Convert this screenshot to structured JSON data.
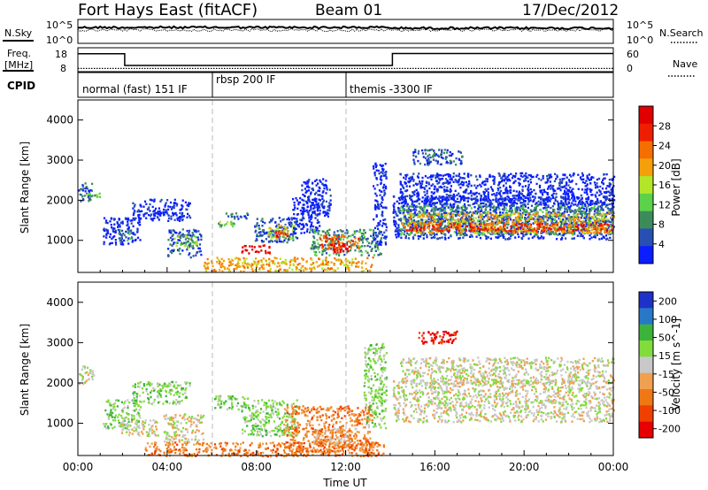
{
  "header": {
    "station": "Fort Hays East (fitACF)",
    "beam": "Beam 01",
    "date": "17/Dec/2012"
  },
  "noise_panel": {
    "left_label": "N.Sky",
    "right_label": "N.Search",
    "ticks": [
      "10^5",
      "10^0"
    ]
  },
  "freq_panel": {
    "left_label_line1": "Freq.",
    "left_label_line2": "[MHz]",
    "left_ticks": [
      "18",
      "8"
    ],
    "right_label": "Nave",
    "right_ticks": [
      "60",
      "0"
    ],
    "freq_steps": [
      {
        "t": 0,
        "v": 15.5
      },
      {
        "t": 2.1,
        "v": 15.5
      },
      {
        "t": 2.1,
        "v": 10.6
      },
      {
        "t": 14.1,
        "v": 10.6
      },
      {
        "t": 14.1,
        "v": 15.6
      },
      {
        "t": 24,
        "v": 15.6
      }
    ],
    "nave_steps": [
      {
        "t": 0,
        "v": 8
      },
      {
        "t": 24,
        "v": 8
      }
    ]
  },
  "cpid": {
    "label": "CPID",
    "segments": [
      {
        "start": 0,
        "end": 6,
        "text": "normal (fast) 151 IF"
      },
      {
        "start": 6,
        "end": 12,
        "text": "rbsp 200 IF"
      },
      {
        "start": 12,
        "end": 24,
        "text": "themis -3300 IF"
      }
    ]
  },
  "colors": {
    "power": [
      "#0a1eff",
      "#2850b4",
      "#3c8c5a",
      "#5cd24a",
      "#b4e628",
      "#f5a00a",
      "#f56e00",
      "#f01e00",
      "#e10000"
    ],
    "velocity": [
      "#1e32c8",
      "#2878c8",
      "#3cb43c",
      "#82dc3c",
      "#c8c8c8",
      "#f0a050",
      "#f07814",
      "#f04000",
      "#e60000"
    ]
  },
  "chart_data": [
    {
      "type": "heatmap",
      "name": "power",
      "xlabel": "",
      "ylabel": "Slant Range [km]",
      "xlim": [
        0,
        24
      ],
      "ylim": [
        200,
        4500
      ],
      "y_ticks": [
        1000,
        2000,
        3000,
        4000
      ],
      "colorbar_label": "Power [dB]",
      "colorbar_ticks": [
        "4",
        "8",
        "12",
        "16",
        "20",
        "24",
        "28"
      ],
      "regions": [
        {
          "t0": 0.0,
          "t1": 0.6,
          "r0": 2000,
          "r1": 2450,
          "level": 1
        },
        {
          "t0": 0.3,
          "t1": 1.0,
          "r0": 2100,
          "r1": 2200,
          "level": 3
        },
        {
          "t0": 1.1,
          "t1": 2.8,
          "r0": 900,
          "r1": 1600,
          "level": 0
        },
        {
          "t0": 1.8,
          "t1": 2.4,
          "r0": 1000,
          "r1": 1300,
          "level": 2
        },
        {
          "t0": 2.4,
          "t1": 5.0,
          "r0": 1500,
          "r1": 2050,
          "level": 0
        },
        {
          "t0": 4.0,
          "t1": 5.5,
          "r0": 600,
          "r1": 1300,
          "level": 1
        },
        {
          "t0": 4.3,
          "t1": 5.3,
          "r0": 850,
          "r1": 1150,
          "level": 3
        },
        {
          "t0": 6.1,
          "t1": 7.0,
          "r0": 1350,
          "r1": 1500,
          "level": 3
        },
        {
          "t0": 6.6,
          "t1": 7.6,
          "r0": 1550,
          "r1": 1700,
          "level": 1
        },
        {
          "t0": 7.3,
          "t1": 8.6,
          "r0": 700,
          "r1": 900,
          "level": 8
        },
        {
          "t0": 7.9,
          "t1": 9.8,
          "r0": 950,
          "r1": 1600,
          "level": 1
        },
        {
          "t0": 8.5,
          "t1": 9.7,
          "r0": 1050,
          "r1": 1400,
          "level": 4
        },
        {
          "t0": 8.8,
          "t1": 9.4,
          "r0": 1100,
          "r1": 1250,
          "level": 7
        },
        {
          "t0": 9.6,
          "t1": 10.8,
          "r0": 1200,
          "r1": 2100,
          "level": 0
        },
        {
          "t0": 10.0,
          "t1": 11.3,
          "r0": 1600,
          "r1": 2550,
          "level": 0
        },
        {
          "t0": 10.4,
          "t1": 13.6,
          "r0": 650,
          "r1": 1300,
          "level": 2
        },
        {
          "t0": 10.8,
          "t1": 12.6,
          "r0": 800,
          "r1": 1150,
          "level": 6
        },
        {
          "t0": 11.2,
          "t1": 12.2,
          "r0": 700,
          "r1": 950,
          "level": 8
        },
        {
          "t0": 13.2,
          "t1": 13.8,
          "r0": 900,
          "r1": 3000,
          "level": 0
        },
        {
          "t0": 14.1,
          "t1": 24.0,
          "r0": 1050,
          "r1": 2150,
          "level": 0
        },
        {
          "t0": 14.3,
          "t1": 24.0,
          "r0": 1150,
          "r1": 1900,
          "level": 2
        },
        {
          "t0": 14.5,
          "t1": 24.0,
          "r0": 1200,
          "r1": 1700,
          "level": 5
        },
        {
          "t0": 14.6,
          "t1": 24.0,
          "r0": 1250,
          "r1": 1450,
          "level": 7
        },
        {
          "t0": 14.4,
          "t1": 24.0,
          "r0": 1900,
          "r1": 2700,
          "level": 0
        },
        {
          "t0": 15.0,
          "t1": 17.2,
          "r0": 2900,
          "r1": 3300,
          "level": 1
        },
        {
          "t0": 5.6,
          "t1": 13.2,
          "r0": 250,
          "r1": 600,
          "level": 5
        }
      ]
    },
    {
      "type": "heatmap",
      "name": "velocity",
      "xlabel": "Time UT",
      "ylabel": "Slant Range [km]",
      "xlim": [
        0,
        24
      ],
      "ylim": [
        200,
        4500
      ],
      "y_ticks": [
        1000,
        2000,
        3000,
        4000
      ],
      "x_ticks": [
        "00:00",
        "04:00",
        "08:00",
        "12:00",
        "16:00",
        "20:00",
        "00:00"
      ],
      "colorbar_label": "Velocity [m s^-1]",
      "colorbar_ticks": [
        "200",
        "100",
        "50",
        "15",
        "-15",
        "-50",
        "-100",
        "-200"
      ],
      "regions": [
        {
          "t0": 0.0,
          "t1": 0.7,
          "r0": 2000,
          "r1": 2450,
          "level": 4
        },
        {
          "t0": 1.1,
          "t1": 2.8,
          "r0": 900,
          "r1": 1600,
          "level": 3
        },
        {
          "t0": 1.9,
          "t1": 3.6,
          "r0": 700,
          "r1": 1100,
          "level": 4
        },
        {
          "t0": 2.4,
          "t1": 5.0,
          "r0": 1500,
          "r1": 2050,
          "level": 3
        },
        {
          "t0": 3.8,
          "t1": 5.6,
          "r0": 550,
          "r1": 1250,
          "level": 4
        },
        {
          "t0": 6.1,
          "t1": 7.6,
          "r0": 1350,
          "r1": 1700,
          "level": 3
        },
        {
          "t0": 7.3,
          "t1": 9.8,
          "r0": 700,
          "r1": 1600,
          "level": 3
        },
        {
          "t0": 9.2,
          "t1": 13.2,
          "r0": 300,
          "r1": 1450,
          "level": 6
        },
        {
          "t0": 10.5,
          "t1": 12.5,
          "r0": 500,
          "r1": 900,
          "level": 5
        },
        {
          "t0": 12.8,
          "t1": 13.8,
          "r0": 900,
          "r1": 3000,
          "level": 3
        },
        {
          "t0": 14.1,
          "t1": 24.0,
          "r0": 1050,
          "r1": 2100,
          "level": 4
        },
        {
          "t0": 14.4,
          "t1": 24.0,
          "r0": 2000,
          "r1": 2650,
          "level": 4
        },
        {
          "t0": 15.2,
          "t1": 17.0,
          "r0": 3000,
          "r1": 3300,
          "level": 8
        },
        {
          "t0": 3.0,
          "t1": 13.8,
          "r0": 200,
          "r1": 550,
          "level": 6
        }
      ]
    }
  ]
}
